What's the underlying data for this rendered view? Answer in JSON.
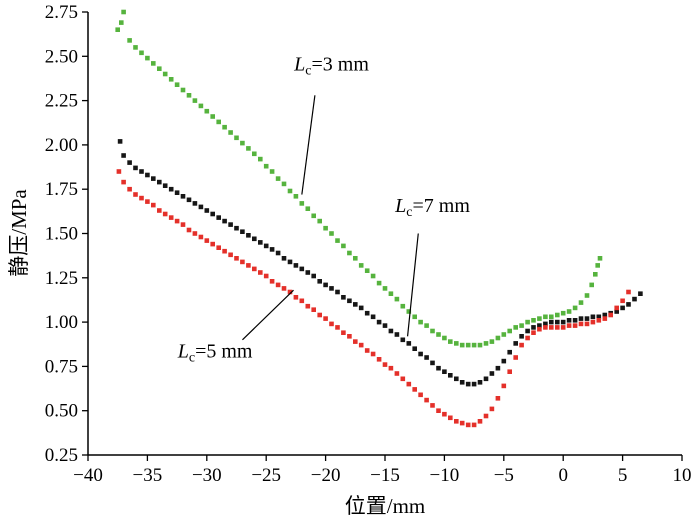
{
  "chart_data": {
    "type": "scatter",
    "title": "",
    "xlabel": "位置/mm",
    "ylabel": "静压/MPa",
    "xlim": [
      -40,
      10
    ],
    "ylim": [
      0.25,
      2.75
    ],
    "x_ticks": [
      -40,
      -35,
      -30,
      -25,
      -20,
      -15,
      -10,
      -5,
      0,
      5,
      10
    ],
    "y_ticks": [
      0.25,
      0.5,
      0.75,
      1.0,
      1.25,
      1.5,
      1.75,
      2.0,
      2.25,
      2.5,
      2.75
    ],
    "grid": false,
    "legend_position": "none",
    "marker": "square",
    "colors": {
      "lc3": "#56b33e",
      "lc7": "#161616",
      "lc5": "#e4302a",
      "axis": "#000000"
    },
    "series": [
      {
        "name": "Lc=3 mm",
        "color_key": "lc3",
        "points": [
          [
            -37.5,
            2.65
          ],
          [
            -37.2,
            2.69
          ],
          [
            -37,
            2.75
          ],
          [
            -36.5,
            2.59
          ],
          [
            -36,
            2.55
          ],
          [
            -35.5,
            2.52
          ],
          [
            -35,
            2.49
          ],
          [
            -34.5,
            2.46
          ],
          [
            -34,
            2.43
          ],
          [
            -33.5,
            2.4
          ],
          [
            -33,
            2.37
          ],
          [
            -32.5,
            2.34
          ],
          [
            -32,
            2.31
          ],
          [
            -31.5,
            2.28
          ],
          [
            -31,
            2.25
          ],
          [
            -30.5,
            2.22
          ],
          [
            -30,
            2.19
          ],
          [
            -29.5,
            2.16
          ],
          [
            -29,
            2.13
          ],
          [
            -28.5,
            2.1
          ],
          [
            -28,
            2.07
          ],
          [
            -27.5,
            2.04
          ],
          [
            -27,
            2.01
          ],
          [
            -26.5,
            1.98
          ],
          [
            -26,
            1.95
          ],
          [
            -25.5,
            1.92
          ],
          [
            -25,
            1.88
          ],
          [
            -24.5,
            1.85
          ],
          [
            -24,
            1.81
          ],
          [
            -23.5,
            1.78
          ],
          [
            -23,
            1.74
          ],
          [
            -22.5,
            1.71
          ],
          [
            -22,
            1.67
          ],
          [
            -21.5,
            1.64
          ],
          [
            -21,
            1.6
          ],
          [
            -20.5,
            1.57
          ],
          [
            -20,
            1.53
          ],
          [
            -19.5,
            1.5
          ],
          [
            -19,
            1.46
          ],
          [
            -18.5,
            1.43
          ],
          [
            -18,
            1.39
          ],
          [
            -17.5,
            1.36
          ],
          [
            -17,
            1.32
          ],
          [
            -16.5,
            1.29
          ],
          [
            -16,
            1.26
          ],
          [
            -15.5,
            1.22
          ],
          [
            -15,
            1.19
          ],
          [
            -14.5,
            1.16
          ],
          [
            -14,
            1.13
          ],
          [
            -13.5,
            1.09
          ],
          [
            -13,
            1.06
          ],
          [
            -12.5,
            1.03
          ],
          [
            -12,
            1.0
          ],
          [
            -11.5,
            0.98
          ],
          [
            -11,
            0.95
          ],
          [
            -10.5,
            0.93
          ],
          [
            -10,
            0.91
          ],
          [
            -9.5,
            0.89
          ],
          [
            -9,
            0.88
          ],
          [
            -8.5,
            0.87
          ],
          [
            -8,
            0.87
          ],
          [
            -7.5,
            0.87
          ],
          [
            -7,
            0.87
          ],
          [
            -6.5,
            0.88
          ],
          [
            -6,
            0.89
          ],
          [
            -5.5,
            0.91
          ],
          [
            -5,
            0.93
          ],
          [
            -4.5,
            0.95
          ],
          [
            -4,
            0.97
          ],
          [
            -3.5,
            0.98
          ],
          [
            -3,
            1.0
          ],
          [
            -2.5,
            1.01
          ],
          [
            -2,
            1.02
          ],
          [
            -1.5,
            1.03
          ],
          [
            -1,
            1.03
          ],
          [
            -0.5,
            1.04
          ],
          [
            0,
            1.05
          ],
          [
            0.5,
            1.06
          ],
          [
            1,
            1.08
          ],
          [
            1.5,
            1.11
          ],
          [
            2,
            1.15
          ],
          [
            2.4,
            1.21
          ],
          [
            2.7,
            1.27
          ],
          [
            2.9,
            1.32
          ],
          [
            3.1,
            1.36
          ]
        ]
      },
      {
        "name": "Lc=7 mm",
        "color_key": "lc7",
        "points": [
          [
            -37.3,
            2.02
          ],
          [
            -37,
            1.94
          ],
          [
            -36.5,
            1.9
          ],
          [
            -36,
            1.87
          ],
          [
            -35.5,
            1.85
          ],
          [
            -35,
            1.83
          ],
          [
            -34.5,
            1.81
          ],
          [
            -34,
            1.79
          ],
          [
            -33.5,
            1.77
          ],
          [
            -33,
            1.75
          ],
          [
            -32.5,
            1.73
          ],
          [
            -32,
            1.71
          ],
          [
            -31.5,
            1.69
          ],
          [
            -31,
            1.67
          ],
          [
            -30.5,
            1.65
          ],
          [
            -30,
            1.63
          ],
          [
            -29.5,
            1.61
          ],
          [
            -29,
            1.59
          ],
          [
            -28.5,
            1.57
          ],
          [
            -28,
            1.55
          ],
          [
            -27.5,
            1.53
          ],
          [
            -27,
            1.51
          ],
          [
            -26.5,
            1.49
          ],
          [
            -26,
            1.47
          ],
          [
            -25.5,
            1.45
          ],
          [
            -25,
            1.43
          ],
          [
            -24.5,
            1.41
          ],
          [
            -24,
            1.39
          ],
          [
            -23.5,
            1.36
          ],
          [
            -23,
            1.34
          ],
          [
            -22.5,
            1.32
          ],
          [
            -22,
            1.3
          ],
          [
            -21.5,
            1.28
          ],
          [
            -21,
            1.26
          ],
          [
            -20.5,
            1.23
          ],
          [
            -20,
            1.21
          ],
          [
            -19.5,
            1.19
          ],
          [
            -19,
            1.17
          ],
          [
            -18.5,
            1.14
          ],
          [
            -18,
            1.12
          ],
          [
            -17.5,
            1.1
          ],
          [
            -17,
            1.08
          ],
          [
            -16.5,
            1.05
          ],
          [
            -16,
            1.03
          ],
          [
            -15.5,
            1.0
          ],
          [
            -15,
            0.98
          ],
          [
            -14.5,
            0.95
          ],
          [
            -14,
            0.93
          ],
          [
            -13.5,
            0.9
          ],
          [
            -13,
            0.88
          ],
          [
            -12.5,
            0.85
          ],
          [
            -12,
            0.82
          ],
          [
            -11.5,
            0.8
          ],
          [
            -11,
            0.77
          ],
          [
            -10.5,
            0.74
          ],
          [
            -10,
            0.72
          ],
          [
            -9.5,
            0.7
          ],
          [
            -9,
            0.68
          ],
          [
            -8.5,
            0.66
          ],
          [
            -8,
            0.65
          ],
          [
            -7.5,
            0.65
          ],
          [
            -7,
            0.66
          ],
          [
            -6.5,
            0.68
          ],
          [
            -6,
            0.71
          ],
          [
            -5.5,
            0.74
          ],
          [
            -5,
            0.78
          ],
          [
            -4.5,
            0.83
          ],
          [
            -4,
            0.88
          ],
          [
            -3.5,
            0.92
          ],
          [
            -3,
            0.95
          ],
          [
            -2.5,
            0.97
          ],
          [
            -2,
            0.98
          ],
          [
            -1.5,
            0.99
          ],
          [
            -1,
            1.0
          ],
          [
            -0.5,
            1.0
          ],
          [
            0,
            1.0
          ],
          [
            0.5,
            1.01
          ],
          [
            1,
            1.01
          ],
          [
            1.5,
            1.02
          ],
          [
            2,
            1.02
          ],
          [
            2.5,
            1.03
          ],
          [
            3,
            1.03
          ],
          [
            3.5,
            1.04
          ],
          [
            4,
            1.05
          ],
          [
            4.5,
            1.06
          ],
          [
            5,
            1.08
          ],
          [
            5.5,
            1.1
          ],
          [
            6,
            1.13
          ],
          [
            6.5,
            1.16
          ]
        ]
      },
      {
        "name": "Lc=5 mm",
        "color_key": "lc5",
        "points": [
          [
            -37.4,
            1.85
          ],
          [
            -37,
            1.79
          ],
          [
            -36.5,
            1.75
          ],
          [
            -36,
            1.72
          ],
          [
            -35.5,
            1.7
          ],
          [
            -35,
            1.68
          ],
          [
            -34.5,
            1.66
          ],
          [
            -34,
            1.63
          ],
          [
            -33.5,
            1.61
          ],
          [
            -33,
            1.59
          ],
          [
            -32.5,
            1.57
          ],
          [
            -32,
            1.55
          ],
          [
            -31.5,
            1.52
          ],
          [
            -31,
            1.5
          ],
          [
            -30.5,
            1.48
          ],
          [
            -30,
            1.46
          ],
          [
            -29.5,
            1.44
          ],
          [
            -29,
            1.42
          ],
          [
            -28.5,
            1.4
          ],
          [
            -28,
            1.38
          ],
          [
            -27.5,
            1.36
          ],
          [
            -27,
            1.34
          ],
          [
            -26.5,
            1.32
          ],
          [
            -26,
            1.3
          ],
          [
            -25.5,
            1.28
          ],
          [
            -25,
            1.26
          ],
          [
            -24.5,
            1.23
          ],
          [
            -24,
            1.21
          ],
          [
            -23.5,
            1.19
          ],
          [
            -23,
            1.17
          ],
          [
            -22.5,
            1.14
          ],
          [
            -22,
            1.12
          ],
          [
            -21.5,
            1.09
          ],
          [
            -21,
            1.07
          ],
          [
            -20.5,
            1.04
          ],
          [
            -20,
            1.02
          ],
          [
            -19.5,
            0.99
          ],
          [
            -19,
            0.97
          ],
          [
            -18.5,
            0.94
          ],
          [
            -18,
            0.92
          ],
          [
            -17.5,
            0.89
          ],
          [
            -17,
            0.87
          ],
          [
            -16.5,
            0.84
          ],
          [
            -16,
            0.82
          ],
          [
            -15.5,
            0.79
          ],
          [
            -15,
            0.76
          ],
          [
            -14.5,
            0.74
          ],
          [
            -14,
            0.71
          ],
          [
            -13.5,
            0.68
          ],
          [
            -13,
            0.65
          ],
          [
            -12.5,
            0.62
          ],
          [
            -12,
            0.59
          ],
          [
            -11.5,
            0.56
          ],
          [
            -11,
            0.53
          ],
          [
            -10.5,
            0.5
          ],
          [
            -10,
            0.48
          ],
          [
            -9.5,
            0.46
          ],
          [
            -9,
            0.44
          ],
          [
            -8.5,
            0.43
          ],
          [
            -8,
            0.42
          ],
          [
            -7.5,
            0.42
          ],
          [
            -7,
            0.44
          ],
          [
            -6.5,
            0.47
          ],
          [
            -6,
            0.51
          ],
          [
            -5.5,
            0.57
          ],
          [
            -5,
            0.64
          ],
          [
            -4.5,
            0.72
          ],
          [
            -4,
            0.8
          ],
          [
            -3.5,
            0.87
          ],
          [
            -3,
            0.91
          ],
          [
            -2.5,
            0.94
          ],
          [
            -2,
            0.96
          ],
          [
            -1.5,
            0.97
          ],
          [
            -1,
            0.97
          ],
          [
            -0.5,
            0.97
          ],
          [
            0,
            0.97
          ],
          [
            0.5,
            0.98
          ],
          [
            1,
            0.98
          ],
          [
            1.5,
            0.99
          ],
          [
            2,
            0.99
          ],
          [
            2.5,
            1.0
          ],
          [
            3,
            1.01
          ],
          [
            3.5,
            1.02
          ],
          [
            4,
            1.04
          ],
          [
            4.5,
            1.08
          ],
          [
            5,
            1.12
          ],
          [
            5.5,
            1.17
          ]
        ]
      }
    ],
    "annotations": [
      {
        "prefix": "L",
        "sub": "c",
        "suffix": "=3 mm",
        "tx": -19.5,
        "ty": 2.42,
        "lx1": -20.9,
        "ly1": 2.28,
        "lx2": -22.0,
        "ly2": 1.72
      },
      {
        "prefix": "L",
        "sub": "c",
        "suffix": "=7 mm",
        "tx": -11.0,
        "ty": 1.62,
        "lx1": -12.2,
        "ly1": 1.5,
        "lx2": -13.1,
        "ly2": 0.92
      },
      {
        "prefix": "L",
        "sub": "c",
        "suffix": "=5 mm",
        "tx": -29.3,
        "ty": 0.8,
        "lx1": -27.0,
        "ly1": 0.9,
        "lx2": -22.7,
        "ly2": 1.18
      }
    ]
  }
}
